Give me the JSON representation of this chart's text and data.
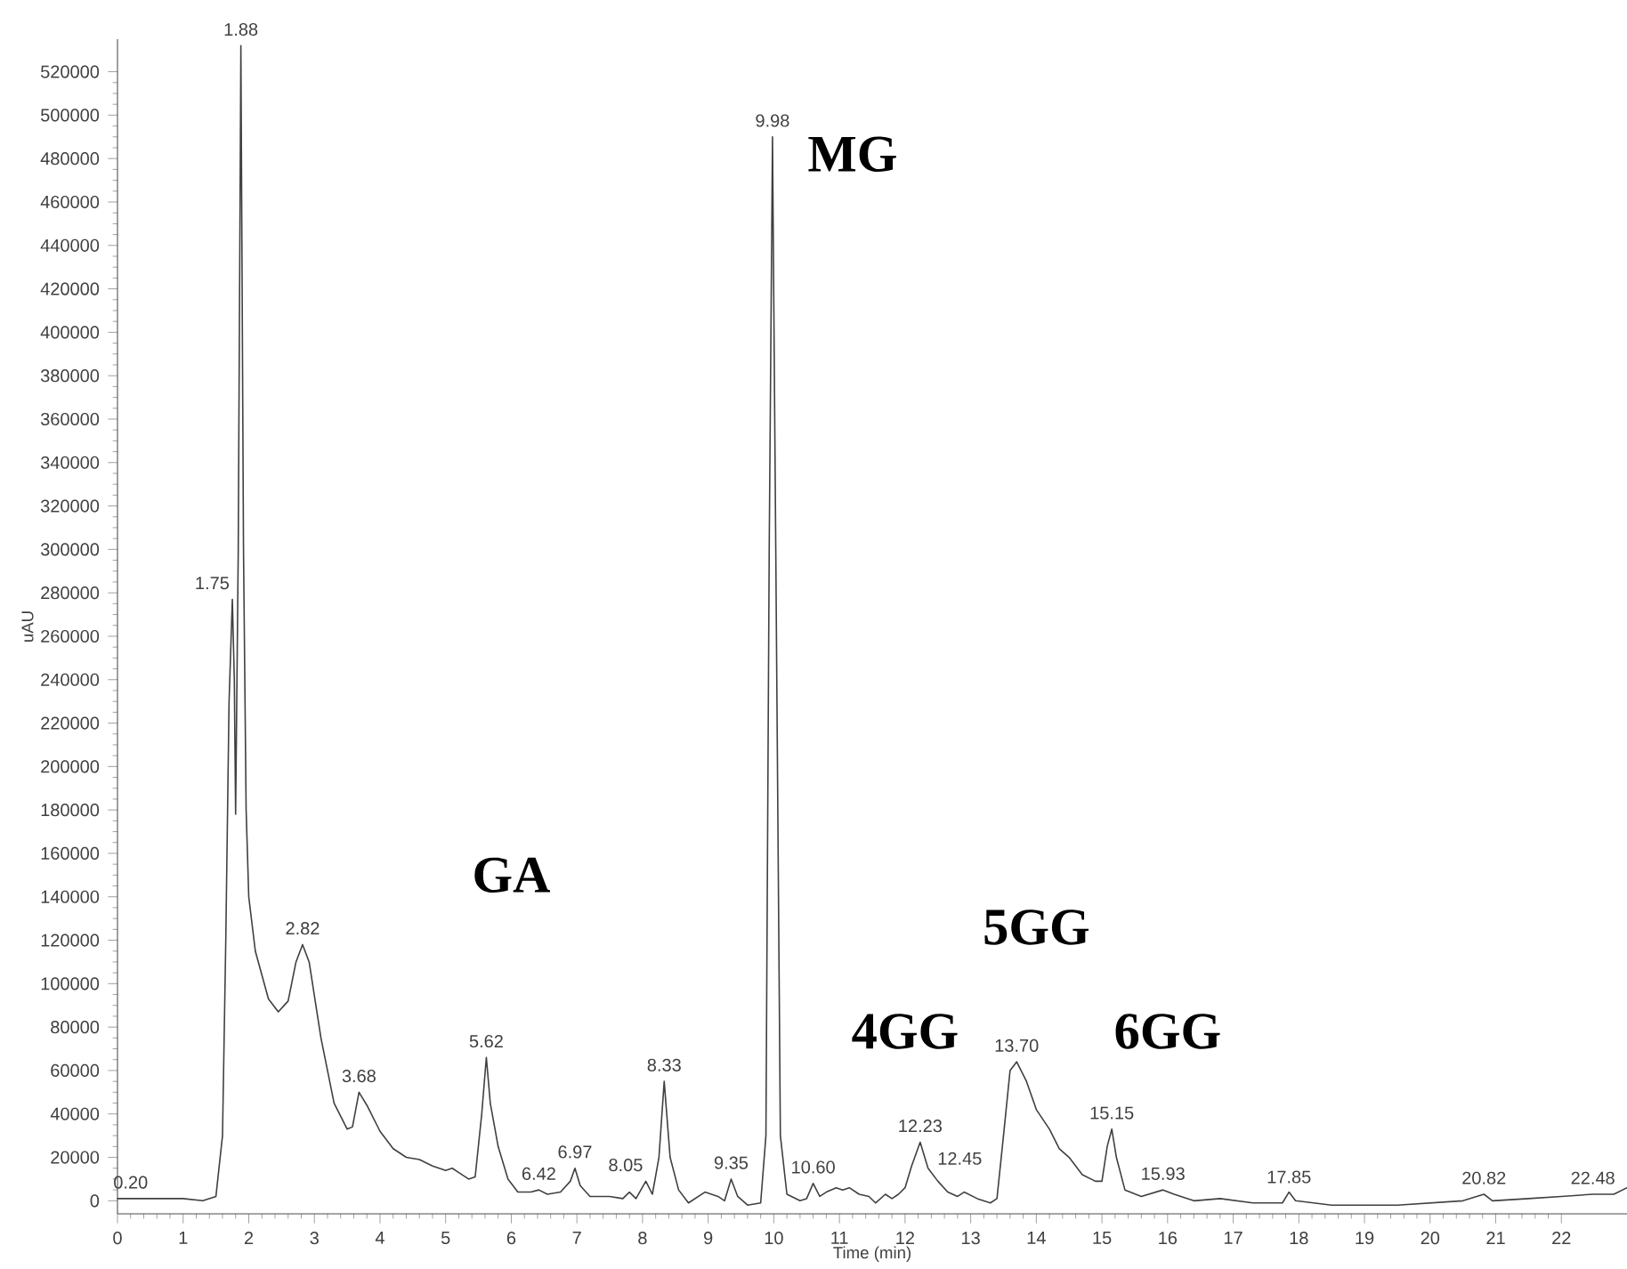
{
  "chart_data": {
    "type": "line",
    "xlabel": "Time (min)",
    "ylabel": "uAU",
    "xlim": [
      0,
      23
    ],
    "ylim": [
      -6000,
      535000
    ],
    "xticks": [
      0,
      1,
      2,
      3,
      4,
      5,
      6,
      7,
      8,
      9,
      10,
      11,
      12,
      13,
      14,
      15,
      16,
      17,
      18,
      19,
      20,
      21,
      22
    ],
    "yticks": [
      0,
      20000,
      40000,
      60000,
      80000,
      100000,
      120000,
      140000,
      160000,
      180000,
      200000,
      220000,
      240000,
      260000,
      280000,
      300000,
      320000,
      340000,
      360000,
      380000,
      400000,
      420000,
      440000,
      460000,
      480000,
      500000,
      520000
    ],
    "grid": false,
    "marker": "none",
    "line_style": "solid",
    "series": [
      {
        "color": "#404040",
        "x": [
          0,
          0.2,
          1.0,
          1.3,
          1.5,
          1.6,
          1.65,
          1.7,
          1.75,
          1.78,
          1.8,
          1.84,
          1.88,
          1.92,
          1.96,
          2.0,
          2.1,
          2.3,
          2.45,
          2.6,
          2.72,
          2.82,
          2.92,
          3.1,
          3.3,
          3.5,
          3.58,
          3.68,
          3.8,
          4.0,
          4.2,
          4.4,
          4.6,
          4.8,
          5.0,
          5.1,
          5.2,
          5.35,
          5.45,
          5.55,
          5.62,
          5.68,
          5.8,
          5.95,
          6.1,
          6.3,
          6.42,
          6.55,
          6.75,
          6.9,
          6.97,
          7.05,
          7.2,
          7.5,
          7.7,
          7.8,
          7.9,
          8.05,
          8.15,
          8.25,
          8.33,
          8.42,
          8.55,
          8.7,
          8.95,
          9.15,
          9.25,
          9.35,
          9.45,
          9.6,
          9.8,
          9.88,
          9.93,
          9.98,
          10.03,
          10.1,
          10.2,
          10.4,
          10.5,
          10.6,
          10.7,
          10.8,
          10.95,
          11.05,
          11.15,
          11.3,
          11.45,
          11.55,
          11.7,
          11.8,
          11.9,
          12.0,
          12.1,
          12.23,
          12.35,
          12.5,
          12.65,
          12.8,
          12.9,
          13.1,
          13.3,
          13.4,
          13.5,
          13.6,
          13.7,
          13.85,
          14.0,
          14.2,
          14.35,
          14.5,
          14.7,
          14.9,
          15.0,
          15.08,
          15.15,
          15.22,
          15.35,
          15.6,
          15.93,
          16.1,
          16.4,
          16.8,
          17.3,
          17.75,
          17.85,
          17.95,
          18.5,
          19.5,
          20.5,
          20.82,
          20.95,
          21.5,
          22.0,
          22.48,
          22.8,
          23.0
        ],
        "values": [
          1000,
          1000,
          1000,
          0,
          2000,
          30000,
          120000,
          230000,
          277000,
          240000,
          178000,
          300000,
          532000,
          300000,
          180000,
          140000,
          115000,
          93000,
          87000,
          92000,
          110000,
          118000,
          110000,
          75000,
          45000,
          33000,
          34000,
          50000,
          44000,
          32000,
          24000,
          20000,
          19000,
          16000,
          14000,
          15000,
          13000,
          10000,
          11000,
          40000,
          66000,
          45000,
          25000,
          10000,
          4000,
          4000,
          5000,
          3000,
          4000,
          9000,
          15000,
          7000,
          2000,
          2000,
          1000,
          4000,
          1000,
          9000,
          3000,
          20000,
          55000,
          20000,
          5000,
          -1000,
          4000,
          2000,
          0,
          10000,
          2000,
          -2000,
          -1000,
          30000,
          300000,
          490000,
          300000,
          30000,
          3000,
          0,
          1000,
          8000,
          2000,
          4000,
          6000,
          5000,
          6000,
          3000,
          2000,
          -1000,
          3000,
          1000,
          3000,
          6000,
          16000,
          27000,
          15000,
          9000,
          4000,
          2000,
          4000,
          1000,
          -1000,
          1000,
          30000,
          60000,
          64000,
          55000,
          42000,
          33000,
          24000,
          20000,
          12000,
          9000,
          9000,
          25000,
          33000,
          20000,
          5000,
          2000,
          5000,
          3000,
          0,
          1000,
          -1000,
          -1000,
          4000,
          0,
          -2000,
          -2000,
          0,
          3000,
          0,
          1000,
          2000,
          3000,
          3000,
          6000
        ]
      }
    ],
    "annotations": [
      {
        "text": "0.20",
        "x": 0.2,
        "y": 1000
      },
      {
        "text": "1.75",
        "x": 1.75,
        "y": 277000
      },
      {
        "text": "1.88",
        "x": 1.88,
        "y": 532000
      },
      {
        "text": "2.82",
        "x": 2.82,
        "y": 118000
      },
      {
        "text": "3.68",
        "x": 3.68,
        "y": 50000
      },
      {
        "text": "5.62",
        "x": 5.62,
        "y": 66000
      },
      {
        "text": "6.42",
        "x": 6.42,
        "y": 5000
      },
      {
        "text": "6.97",
        "x": 6.97,
        "y": 15000
      },
      {
        "text": "8.05",
        "x": 8.05,
        "y": 9000
      },
      {
        "text": "8.33",
        "x": 8.33,
        "y": 55000
      },
      {
        "text": "9.35",
        "x": 9.35,
        "y": 10000
      },
      {
        "text": "9.98",
        "x": 9.98,
        "y": 490000
      },
      {
        "text": "10.60",
        "x": 10.6,
        "y": 8000
      },
      {
        "text": "12.23",
        "x": 12.23,
        "y": 27000
      },
      {
        "text": "12.45",
        "x": 12.45,
        "y": 12000
      },
      {
        "text": "13.70",
        "x": 13.7,
        "y": 64000
      },
      {
        "text": "15.15",
        "x": 15.15,
        "y": 33000
      },
      {
        "text": "15.93",
        "x": 15.93,
        "y": 5000
      },
      {
        "text": "17.85",
        "x": 17.85,
        "y": 3500
      },
      {
        "text": "20.82",
        "x": 20.82,
        "y": 3000
      },
      {
        "text": "22.48",
        "x": 22.48,
        "y": 3000
      },
      "GA",
      "MG",
      "4GG",
      "5GG",
      "6GG"
    ]
  }
}
